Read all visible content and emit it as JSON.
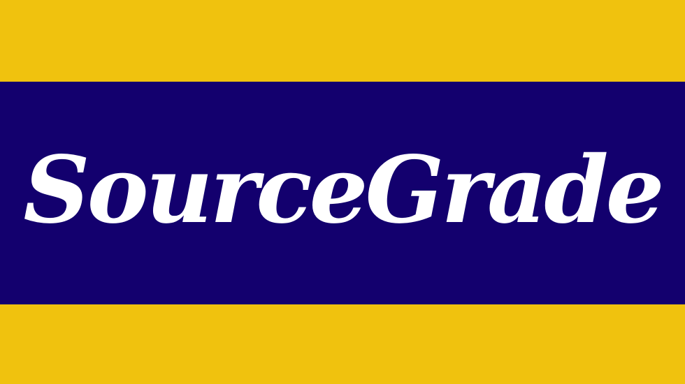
{
  "logo": {
    "wordmark": "SourceGrade"
  },
  "colors": {
    "stripe": "#F0C20E",
    "band": "#13006E",
    "text": "#FFFFFF"
  }
}
